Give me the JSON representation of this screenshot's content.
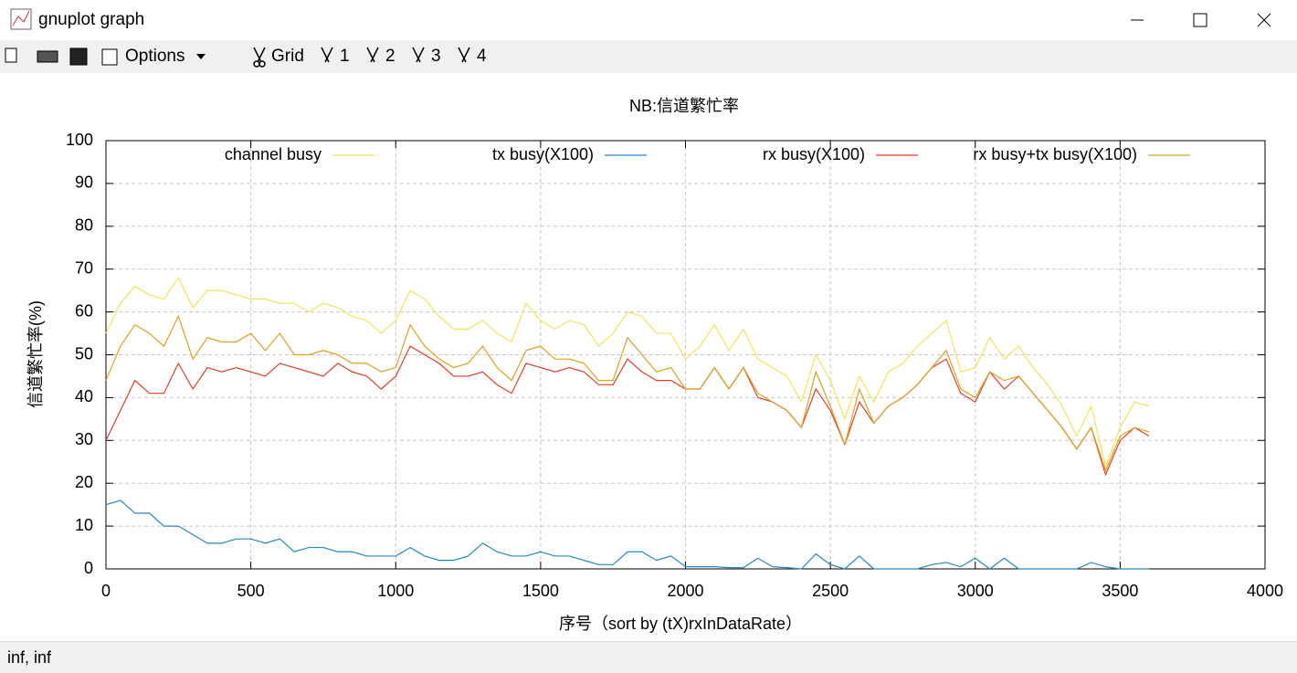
{
  "window": {
    "title": "gnuplot graph",
    "toolbar": [
      "Options",
      "Grid",
      "1",
      "2",
      "3",
      "4"
    ],
    "status": "inf,  inf"
  },
  "chart_data": {
    "type": "line",
    "title": "NB:信道繁忙率",
    "x_label": "序号（sort by (tX)rxInDataRate）",
    "y_label": "信道繁忙率(%)",
    "x": [
      0,
      50,
      100,
      150,
      200,
      250,
      300,
      350,
      400,
      450,
      500,
      550,
      600,
      650,
      700,
      750,
      800,
      850,
      900,
      950,
      1000,
      1050,
      1100,
      1150,
      1200,
      1250,
      1300,
      1350,
      1400,
      1450,
      1500,
      1550,
      1600,
      1650,
      1700,
      1750,
      1800,
      1850,
      1900,
      1950,
      2000,
      2050,
      2100,
      2150,
      2200,
      2250,
      2300,
      2350,
      2400,
      2450,
      2500,
      2550,
      2600,
      2650,
      2700,
      2750,
      2800,
      2850,
      2900,
      2950,
      3000,
      3050,
      3100,
      3150,
      3200,
      3250,
      3300,
      3350,
      3400,
      3450,
      3500,
      3550,
      3600
    ],
    "series": [
      {
        "name": "channel busy",
        "color": "#f2e35c",
        "values": [
          55,
          62,
          66,
          64,
          63,
          68,
          61,
          65,
          65,
          64,
          63,
          63,
          62,
          62,
          60,
          62,
          61,
          59,
          58,
          55,
          58,
          65,
          63,
          59,
          56,
          56,
          58,
          55,
          53,
          62,
          58,
          56,
          58,
          57,
          52,
          55,
          60,
          59,
          55,
          55,
          49,
          52,
          57,
          51,
          56,
          49,
          47,
          45,
          39,
          50,
          44,
          35,
          45,
          39,
          46,
          48,
          52,
          55,
          58,
          46,
          47,
          54,
          49,
          52,
          47,
          43,
          38,
          31,
          38,
          24,
          33,
          39,
          38
        ]
      },
      {
        "name": "tx busy(X100)",
        "color": "#2a86c0",
        "values": [
          15,
          16,
          13,
          13,
          10,
          10,
          8,
          6,
          6,
          7,
          7,
          6,
          7,
          4,
          5,
          5,
          4,
          4,
          3,
          3,
          3,
          5,
          3,
          2,
          2,
          3,
          6,
          4,
          3,
          3,
          4,
          3,
          3,
          2,
          1,
          1,
          4,
          4,
          2,
          3,
          0.5,
          0.5,
          0.5,
          0.3,
          0.3,
          2.5,
          0.5,
          0.3,
          0,
          3.5,
          1,
          0,
          3,
          0,
          0,
          0,
          0,
          1,
          1.5,
          0.5,
          2.5,
          0,
          2.5,
          0,
          0,
          0,
          0,
          0,
          1.5,
          0.5,
          0,
          0,
          0
        ]
      },
      {
        "name": "rx busy(X100)",
        "color": "#e0402a",
        "values": [
          30,
          37,
          44,
          41,
          41,
          48,
          42,
          47,
          46,
          47,
          46,
          45,
          48,
          47,
          46,
          45,
          48,
          46,
          45,
          42,
          45,
          52,
          50,
          48,
          45,
          45,
          46,
          43,
          41,
          48,
          47,
          46,
          47,
          46,
          43,
          43,
          49,
          46,
          44,
          44,
          42,
          42,
          47,
          42,
          47,
          40,
          39,
          37,
          33,
          42,
          37,
          29,
          39,
          34,
          38,
          40,
          43,
          47,
          49,
          41,
          39,
          46,
          42,
          45,
          41,
          37,
          33,
          28,
          33,
          22,
          30,
          33,
          31
        ]
      },
      {
        "name": "rx busy+tx busy(X100)",
        "color": "#e0a020",
        "values": [
          44,
          52,
          57,
          55,
          52,
          59,
          49,
          54,
          53,
          53,
          55,
          51,
          55,
          50,
          50,
          51,
          50,
          48,
          48,
          46,
          47,
          57,
          52,
          49,
          47,
          48,
          52,
          47,
          44,
          51,
          52,
          49,
          49,
          48,
          44,
          44,
          54,
          50,
          46,
          47,
          42,
          42,
          47,
          42,
          47,
          41,
          39,
          37,
          33,
          46,
          38,
          29,
          42,
          34,
          38,
          40,
          43,
          47,
          51,
          42,
          40,
          46,
          44,
          45,
          41,
          37,
          33,
          28,
          33,
          23,
          31,
          33,
          32
        ]
      }
    ],
    "xlim": [
      0,
      4000
    ],
    "ylim": [
      0,
      100
    ],
    "xticks": [
      0,
      500,
      1000,
      1500,
      2000,
      2500,
      3000,
      3500,
      4000
    ],
    "yticks": [
      0,
      10,
      20,
      30,
      40,
      50,
      60,
      70,
      80,
      90,
      100
    ],
    "grid": true,
    "legend": "top"
  }
}
